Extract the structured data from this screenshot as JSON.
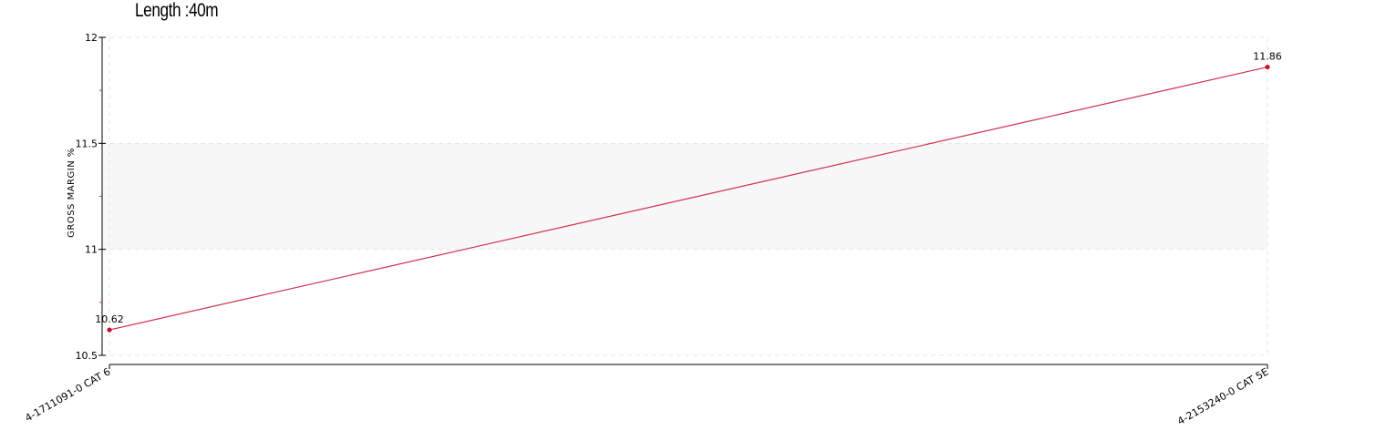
{
  "title": "Length :40m",
  "chart_data": {
    "type": "line",
    "title": "Length :40m",
    "xlabel": "",
    "ylabel": "GROSS MARGIN %",
    "categories": [
      "4-1711091-0 CAT 6",
      "4-2153240-0 CAT 5E"
    ],
    "series": [
      {
        "values": [
          10.62,
          11.86
        ],
        "data_labels": [
          "10.62",
          "11.86"
        ]
      }
    ],
    "ylim": [
      10.5,
      12
    ],
    "yticks": [
      10.5,
      11,
      11.5,
      12
    ],
    "ytick_labels": [
      "10.5",
      "11",
      "11.5",
      "12"
    ],
    "grid": true,
    "shaded_band": [
      11,
      11.5
    ],
    "colors": {
      "line": "#d0304a",
      "point": "#c8102e",
      "band": "#f7f7f7",
      "grid": "#e6e6e6",
      "axis": "#000000",
      "minor_tick": "#e0304a"
    }
  }
}
